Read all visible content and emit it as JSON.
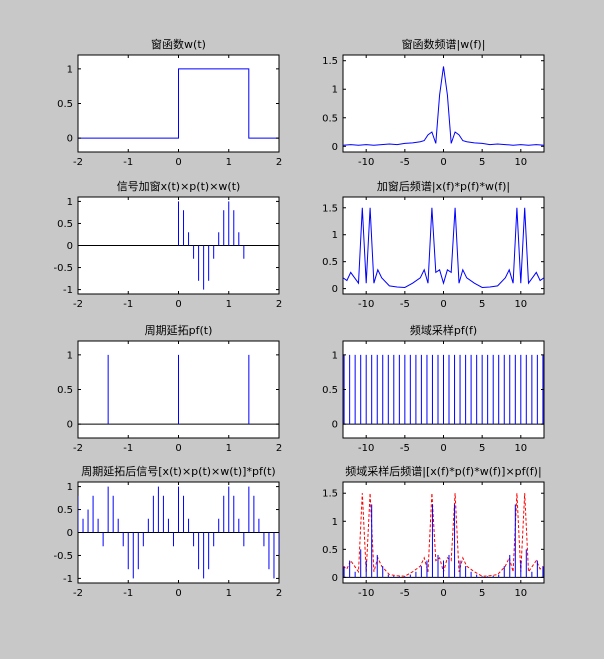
{
  "figure": {
    "background": "#c8c8c8"
  },
  "chart_data": [
    {
      "id": "window",
      "type": "line",
      "title": "窗函数w(t)",
      "xlim": [
        -2,
        2
      ],
      "ylim": [
        -0.2,
        1.2
      ],
      "xticks": [
        -2,
        -1,
        0,
        1,
        2
      ],
      "yticks": [
        0,
        0.5,
        1
      ],
      "series": [
        {
          "color": "#0000ff",
          "x": [
            -2,
            0,
            0,
            1.4,
            1.4,
            2
          ],
          "y": [
            0,
            0,
            1,
            1,
            0,
            0
          ]
        }
      ]
    },
    {
      "id": "window-spectrum",
      "type": "line",
      "title": "窗函数频谱|w(f)|",
      "xlim": [
        -13,
        13
      ],
      "ylim": [
        -0.1,
        1.6
      ],
      "xticks": [
        -10,
        -5,
        0,
        5,
        10
      ],
      "yticks": [
        0,
        0.5,
        1,
        1.5
      ],
      "series": [
        {
          "color": "#0000ff",
          "x": [
            -13,
            -12,
            -11,
            -10,
            -9,
            -8,
            -7,
            -6,
            -5,
            -4,
            -3,
            -2.5,
            -2,
            -1.5,
            -1,
            -0.5,
            0,
            0.5,
            1,
            1.5,
            2,
            2.5,
            3,
            4,
            5,
            6,
            7,
            8,
            9,
            10,
            11,
            12,
            13
          ],
          "y": [
            0.02,
            0.03,
            0.02,
            0.03,
            0.02,
            0.03,
            0.04,
            0.03,
            0.05,
            0.06,
            0.08,
            0.1,
            0.2,
            0.25,
            0.05,
            0.9,
            1.4,
            0.9,
            0.05,
            0.25,
            0.2,
            0.1,
            0.08,
            0.06,
            0.05,
            0.03,
            0.04,
            0.03,
            0.02,
            0.03,
            0.02,
            0.03,
            0.02
          ]
        }
      ]
    },
    {
      "id": "sampled-signal",
      "type": "stem",
      "title": "信号加窗x(t)×p(t)×w(t)",
      "xlim": [
        -2,
        2
      ],
      "ylim": [
        -1.1,
        1.1
      ],
      "xticks": [
        -2,
        -1,
        0,
        1,
        2
      ],
      "yticks": [
        -1,
        -0.5,
        0,
        0.5,
        1
      ],
      "series": [
        {
          "color": "#0000ff",
          "x": [
            0,
            0.1,
            0.2,
            0.3,
            0.4,
            0.5,
            0.6,
            0.7,
            0.8,
            0.9,
            1.0,
            1.1,
            1.2,
            1.3
          ],
          "y": [
            1.0,
            0.8,
            0.3,
            -0.3,
            -0.8,
            -1.0,
            -0.8,
            -0.3,
            0.3,
            0.8,
            1.0,
            0.8,
            0.3,
            -0.3
          ]
        }
      ]
    },
    {
      "id": "windowed-spectrum",
      "type": "line",
      "title": "加窗后频谱|x(f)*p(f)*w(f)|",
      "xlim": [
        -13,
        13
      ],
      "ylim": [
        -0.1,
        1.7
      ],
      "xticks": [
        -10,
        -5,
        0,
        5,
        10
      ],
      "yticks": [
        0,
        0.5,
        1,
        1.5
      ],
      "series": [
        {
          "color": "#0000ff",
          "x": [
            -13,
            -12.5,
            -12,
            -11.5,
            -11,
            -10.5,
            -10,
            -9.5,
            -9,
            -8.5,
            -8,
            -7,
            -6,
            -5,
            -4,
            -3,
            -2.5,
            -2,
            -1.5,
            -1,
            -0.5,
            0,
            0.5,
            1,
            1.5,
            2,
            2.5,
            3,
            4,
            5,
            6,
            7,
            8,
            8.5,
            9,
            9.5,
            10,
            10.5,
            11,
            11.5,
            12,
            12.5,
            13
          ],
          "y": [
            0.2,
            0.15,
            0.3,
            0.2,
            0.1,
            1.5,
            0.1,
            1.5,
            0.1,
            0.35,
            0.2,
            0.05,
            0.03,
            0.02,
            0.1,
            0.2,
            0.35,
            0.1,
            1.5,
            0.3,
            0.35,
            0.1,
            0.35,
            0.3,
            1.5,
            0.1,
            0.35,
            0.2,
            0.1,
            0.02,
            0.03,
            0.05,
            0.2,
            0.35,
            0.1,
            1.5,
            0.1,
            1.5,
            0.1,
            0.2,
            0.3,
            0.15,
            0.2
          ]
        }
      ]
    },
    {
      "id": "periodic-extension",
      "type": "stem",
      "title": "周期延拓pf(t)",
      "xlim": [
        -2,
        2
      ],
      "ylim": [
        -0.2,
        1.2
      ],
      "xticks": [
        -2,
        -1,
        0,
        1,
        2
      ],
      "yticks": [
        0,
        0.5,
        1
      ],
      "series": [
        {
          "color": "#0000ff",
          "x": [
            -1.4,
            0,
            1.4
          ],
          "y": [
            1,
            1,
            1
          ]
        }
      ]
    },
    {
      "id": "frequency-sampling",
      "type": "stem",
      "title": "频域采样pf(f)",
      "xlim": [
        -13,
        13
      ],
      "ylim": [
        -0.2,
        1.2
      ],
      "xticks": [
        -10,
        -5,
        0,
        5,
        10
      ],
      "yticks": [
        0,
        0.5,
        1
      ],
      "series": [
        {
          "color": "#0000ff",
          "x": [
            -12.86,
            -12.14,
            -11.43,
            -10.71,
            -10,
            -9.29,
            -8.57,
            -7.86,
            -7.14,
            -6.43,
            -5.71,
            -5,
            -4.29,
            -3.57,
            -2.86,
            -2.14,
            -1.43,
            -0.71,
            0,
            0.71,
            1.43,
            2.14,
            2.86,
            3.57,
            4.29,
            5,
            5.71,
            6.43,
            7.14,
            7.86,
            8.57,
            9.29,
            10,
            10.71,
            11.43,
            12.14,
            12.86
          ],
          "y": [
            1,
            1,
            1,
            1,
            1,
            1,
            1,
            1,
            1,
            1,
            1,
            1,
            1,
            1,
            1,
            1,
            1,
            1,
            1,
            1,
            1,
            1,
            1,
            1,
            1,
            1,
            1,
            1,
            1,
            1,
            1,
            1,
            1,
            1,
            1,
            1,
            1
          ]
        }
      ]
    },
    {
      "id": "extended-signal",
      "type": "stem",
      "title": "周期延拓后信号[x(t)×p(t)×w(t)]*pf(t)",
      "xlim": [
        -2,
        2
      ],
      "ylim": [
        -1.1,
        1.1
      ],
      "xticks": [
        -2,
        -1,
        0,
        1,
        2
      ],
      "yticks": [
        -1,
        -0.5,
        0,
        0.5,
        1
      ],
      "series": [
        {
          "color": "#0000ff",
          "x": [
            -2.0,
            -1.9,
            -1.8,
            -1.7,
            -1.6,
            -1.5,
            -1.4,
            -1.3,
            -1.2,
            -1.1,
            -1.0,
            -0.9,
            -0.8,
            -0.7,
            -0.6,
            -0.5,
            -0.4,
            -0.3,
            -0.2,
            -0.1,
            0,
            0.1,
            0.2,
            0.3,
            0.4,
            0.5,
            0.6,
            0.7,
            0.8,
            0.9,
            1.0,
            1.1,
            1.2,
            1.3,
            1.4,
            1.5,
            1.6,
            1.7,
            1.8,
            1.9,
            2.0
          ],
          "y": [
            0.8,
            0.3,
            0.5,
            0.8,
            0.3,
            -0.3,
            1.0,
            0.8,
            0.3,
            -0.3,
            -0.8,
            -1.0,
            -0.8,
            -0.3,
            0.3,
            0.8,
            1.0,
            0.8,
            0.3,
            -0.3,
            1.0,
            0.8,
            0.3,
            -0.3,
            -0.8,
            -1.0,
            -0.8,
            -0.3,
            0.3,
            0.8,
            1.0,
            0.8,
            0.3,
            -0.3,
            1.0,
            0.8,
            0.3,
            -0.3,
            -0.8,
            -1.0,
            -0.5
          ]
        }
      ]
    },
    {
      "id": "sampled-spectrum",
      "type": "line",
      "title": "频域采样后频谱|[x(f)*p(f)*w(f)]×pf(f)|",
      "xlim": [
        -13,
        13
      ],
      "ylim": [
        -0.1,
        1.7
      ],
      "xticks": [
        -10,
        -5,
        0,
        5,
        10
      ],
      "yticks": [
        0,
        0.5,
        1,
        1.5
      ],
      "series": [
        {
          "color": "#ff0000",
          "dash": true,
          "x": [
            -13,
            -12.5,
            -12,
            -11.5,
            -11,
            -10.5,
            -10,
            -9.5,
            -9,
            -8.5,
            -8,
            -7,
            -6,
            -5,
            -4,
            -3,
            -2.5,
            -2,
            -1.5,
            -1,
            -0.5,
            0,
            0.5,
            1,
            1.5,
            2,
            2.5,
            3,
            4,
            5,
            6,
            7,
            8,
            8.5,
            9,
            9.5,
            10,
            10.5,
            11,
            11.5,
            12,
            12.5,
            13
          ],
          "y": [
            0.2,
            0.15,
            0.3,
            0.2,
            0.1,
            1.5,
            0.1,
            1.5,
            0.1,
            0.35,
            0.2,
            0.05,
            0.03,
            0.02,
            0.1,
            0.2,
            0.35,
            0.1,
            1.5,
            0.3,
            0.35,
            0.1,
            0.35,
            0.3,
            1.5,
            0.1,
            0.35,
            0.2,
            0.1,
            0.02,
            0.03,
            0.05,
            0.2,
            0.35,
            0.1,
            1.5,
            0.1,
            1.5,
            0.1,
            0.2,
            0.3,
            0.15,
            0.2
          ]
        },
        {
          "color": "#0000ff",
          "stem": true,
          "x": [
            -12.86,
            -12.14,
            -11.43,
            -10.71,
            -10,
            -9.29,
            -8.57,
            -7.86,
            -7.14,
            -6.43,
            -5.71,
            -5,
            -4.29,
            -3.57,
            -2.86,
            -2.14,
            -1.43,
            -0.71,
            0,
            0.71,
            1.43,
            2.14,
            2.86,
            3.57,
            4.29,
            5,
            5.71,
            6.43,
            7.14,
            7.86,
            8.57,
            9.29,
            10,
            10.71,
            11.43,
            12.14,
            12.86
          ],
          "y": [
            0.2,
            0.3,
            0.1,
            0.5,
            0.3,
            1.3,
            0.4,
            0.2,
            0.05,
            0.03,
            0.02,
            0.02,
            0.05,
            0.1,
            0.2,
            0.3,
            1.3,
            0.4,
            0.3,
            0.4,
            1.3,
            0.3,
            0.2,
            0.1,
            0.05,
            0.02,
            0.02,
            0.03,
            0.05,
            0.2,
            0.4,
            1.3,
            0.3,
            0.5,
            0.1,
            0.3,
            0.2
          ]
        }
      ]
    }
  ]
}
